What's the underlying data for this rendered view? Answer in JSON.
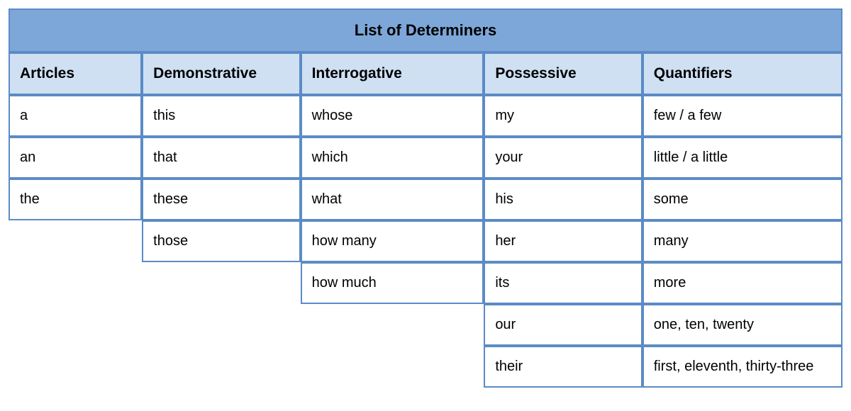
{
  "table": {
    "title": "List of Determiners",
    "title_bg": "#7da7d9",
    "header_bg": "#cfe0f3",
    "body_bg": "#ffffff",
    "border_color": "#5b8bc6",
    "font_family": "Arial",
    "title_fontsize": 22,
    "header_fontsize": 21,
    "body_fontsize": 20,
    "columns": [
      "Articles",
      "Demonstrative",
      "Interrogative",
      "Possessive",
      "Quantifiers"
    ],
    "column_widths_pct": [
      16,
      19,
      22,
      19,
      24
    ],
    "rows": [
      [
        "a",
        "this",
        "whose",
        "my",
        "few / a few"
      ],
      [
        "an",
        "that",
        "which",
        "your",
        "little / a little"
      ],
      [
        "the",
        "these",
        "what",
        "his",
        "some"
      ],
      [
        null,
        "those",
        "how many",
        "her",
        "many"
      ],
      [
        null,
        null,
        "how much",
        "its",
        "more"
      ],
      [
        null,
        null,
        null,
        "our",
        "one, ten, twenty"
      ],
      [
        null,
        null,
        null,
        "their",
        "first, eleventh, thirty-three"
      ]
    ]
  }
}
